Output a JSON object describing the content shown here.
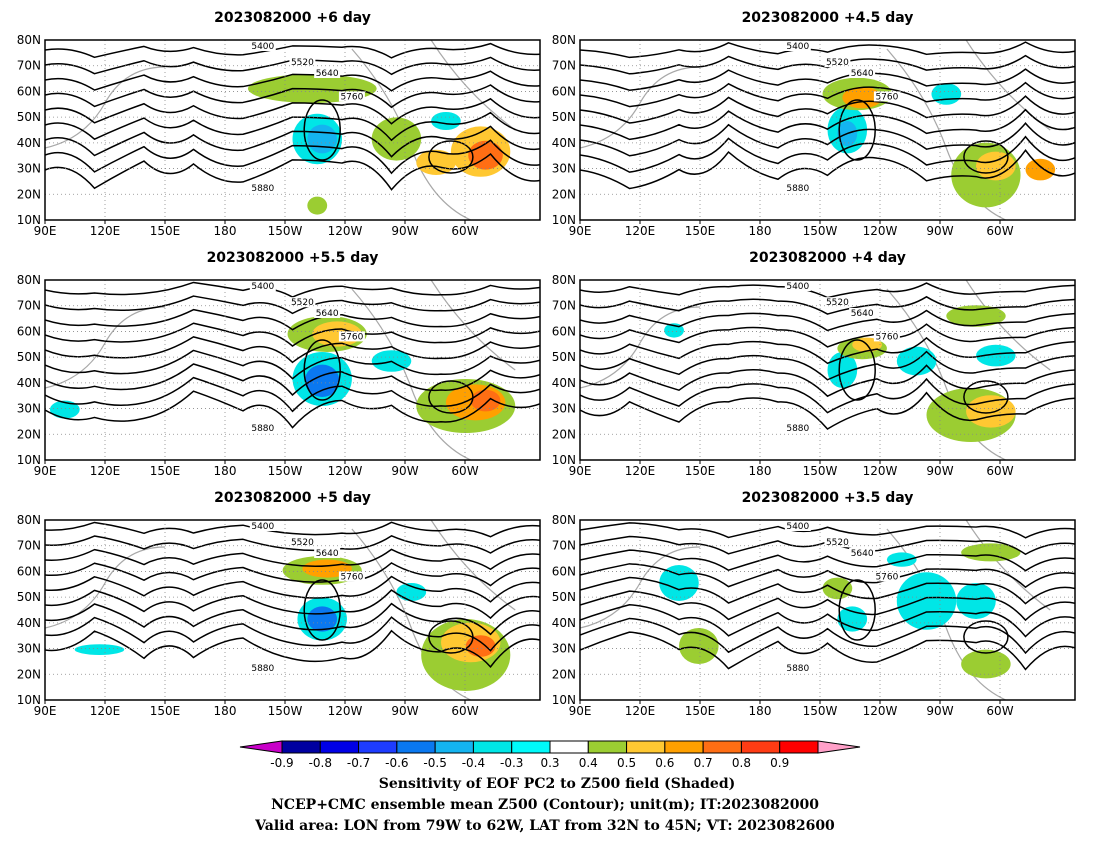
{
  "panels": [
    {
      "title": "2023082000  +6 day"
    },
    {
      "title": "2023082000  +4.5  day"
    },
    {
      "title": "2023082000  +5.5  day"
    },
    {
      "title": "2023082000  +4  day"
    },
    {
      "title": "2023082000  +5  day"
    },
    {
      "title": "2023082000  +3.5  day"
    }
  ],
  "axes": {
    "lon_ticks": [
      "90E",
      "120E",
      "150E",
      "180",
      "150W",
      "120W",
      "90W",
      "60W"
    ],
    "lat_ticks": [
      "80N",
      "70N",
      "60N",
      "50N",
      "40N",
      "30N",
      "20N",
      "10N"
    ]
  },
  "contour_levels": [
    "5400",
    "5520",
    "5640",
    "5760",
    "5880"
  ],
  "colorbar": {
    "ticks": [
      "-0.9",
      "-0.8",
      "-0.7",
      "-0.6",
      "-0.5",
      "-0.4",
      "-0.3",
      "0.3",
      "0.4",
      "0.5",
      "0.6",
      "0.7",
      "0.8",
      "0.9"
    ],
    "colors": [
      "#c800c8",
      "#0000a0",
      "#0000e6",
      "#1e3cff",
      "#0a78f0",
      "#14b4f0",
      "#00e6e6",
      "#00fafa",
      "#ffffff",
      "#9bcd32",
      "#ffc832",
      "#ffa000",
      "#ff6e14",
      "#ff3c14",
      "#ff0000",
      "#ffa0c8"
    ]
  },
  "captions": [
    "Sensitivity of EOF PC2 to Z500 field (Shaded)",
    "NCEP+CMC ensemble mean Z500 (Contour); unit(m); IT:2023082000",
    "Valid area: LON from 79W to 62W, LAT from 32N to 45N; VT: 2023082600"
  ]
}
